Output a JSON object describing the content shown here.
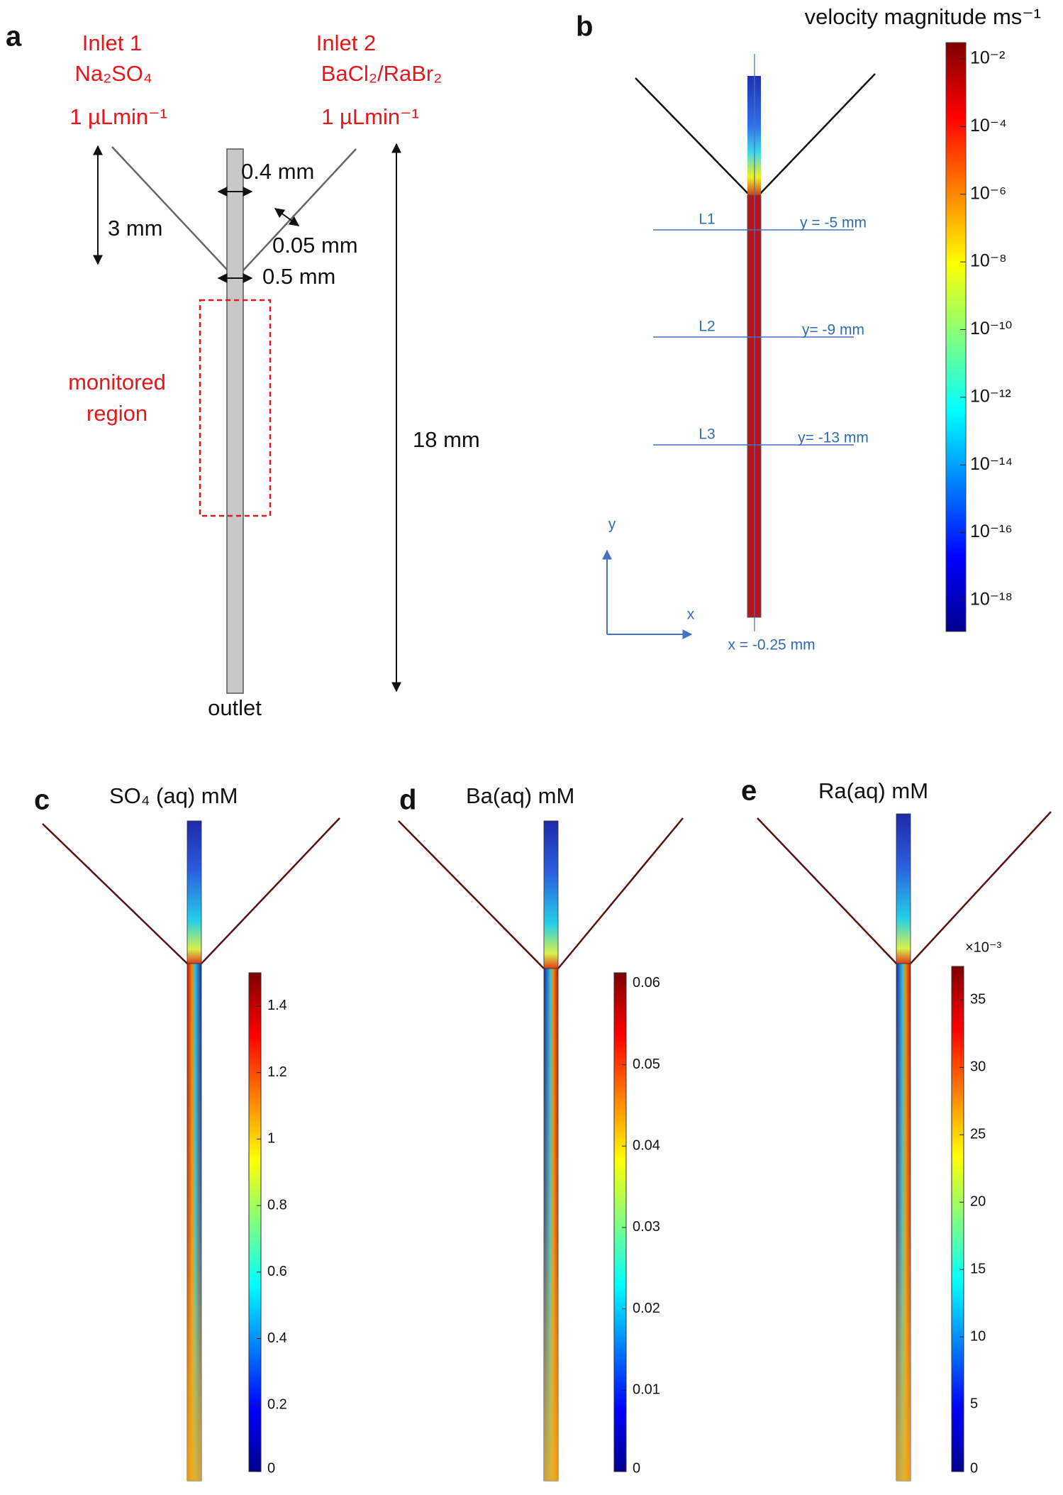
{
  "panels": {
    "a": {
      "label": "a",
      "inlet1": {
        "name": "Inlet 1",
        "solution": "Na₂SO₄",
        "flow": "1 µLmin⁻¹"
      },
      "inlet2": {
        "name": "Inlet 2",
        "solution": "BaCl₂/RaBr₂",
        "flow": "1 µLmin⁻¹"
      },
      "dimensions": [
        "3 mm",
        "0.4 mm",
        "0.05 mm",
        "0.5 mm",
        "18 mm"
      ],
      "region": [
        "monitored",
        "region"
      ],
      "outlet": "outlet"
    },
    "b": {
      "label": "b",
      "colorbar_title": "velocity magnitude ms⁻¹",
      "colorbar_labels": [
        "10⁻²",
        "10⁻⁴",
        "10⁻⁶",
        "10⁻⁸",
        "10⁻¹⁰",
        "10⁻¹²",
        "10⁻¹⁴",
        "10⁻¹⁶",
        "10⁻¹⁸"
      ],
      "lines": [
        {
          "name": "L1",
          "position": "y = -5 mm"
        },
        {
          "name": "L2",
          "position": "y= -9 mm"
        },
        {
          "name": "L3",
          "position": "y= -13 mm"
        }
      ],
      "axis_x": "x",
      "axis_y": "y",
      "centerline": "x = -0.25 mm"
    },
    "c": {
      "label": "c",
      "title": "SO₄ (aq) mM",
      "colorbar": {
        "range": [
          0,
          1.5
        ],
        "ticks": [
          0,
          0.2,
          0.4,
          0.6,
          0.8,
          1,
          1.2,
          1.4
        ]
      }
    },
    "d": {
      "label": "d",
      "title": "Ba(aq) mM",
      "colorbar": {
        "range": [
          0,
          0.0613
        ],
        "ticks": [
          0,
          0.01,
          0.02,
          0.03,
          0.04,
          0.05,
          0.06
        ]
      }
    },
    "e": {
      "label": "e",
      "title": "Ra(aq) mM",
      "multiplier": "×10⁻³",
      "colorbar": {
        "range": [
          0,
          37.5
        ],
        "ticks": [
          0,
          5,
          10,
          15,
          20,
          25,
          30,
          35
        ]
      }
    }
  }
}
